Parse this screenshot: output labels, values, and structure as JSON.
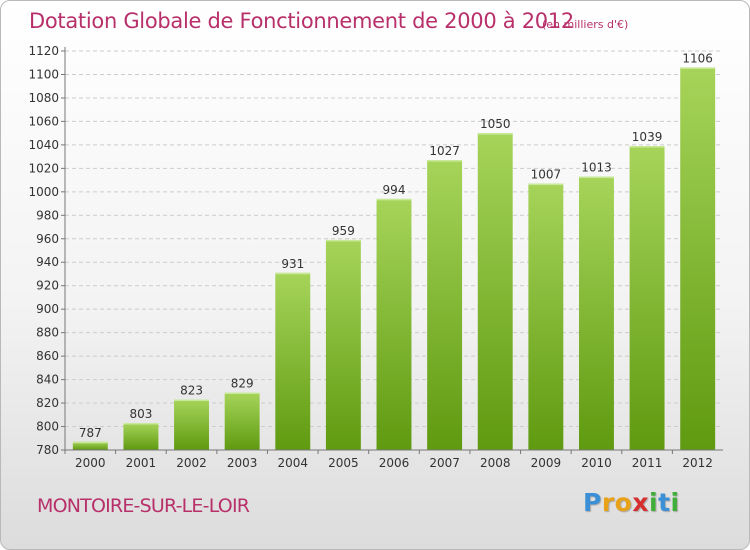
{
  "header": {
    "title": "Dotation Globale de Fonctionnement de 2000 à 2012",
    "subtitle": "(en milliers d'€)"
  },
  "footer": {
    "commune": "MONTOIRE-SUR-LE-LOIR",
    "logo_letters": [
      "P",
      "r",
      "o",
      "x",
      "i",
      "t",
      "i"
    ],
    "logo_colors": [
      "#3a8fd6",
      "#e8a21a",
      "#e8a21a",
      "#d62f2f",
      "#3fae3a",
      "#3a8fd6",
      "#3fae3a"
    ]
  },
  "colors": {
    "bar_light": "#a6d45a",
    "bar_dark": "#5f9a10",
    "title": "#b8306a",
    "grid": "#cccccc"
  },
  "chart_data": {
    "type": "bar",
    "title": "Dotation Globale de Fonctionnement de 2000 à 2012",
    "subtitle": "(en milliers d'€)",
    "categories": [
      "2000",
      "2001",
      "2002",
      "2003",
      "2004",
      "2005",
      "2006",
      "2007",
      "2008",
      "2009",
      "2010",
      "2011",
      "2012"
    ],
    "values": [
      787,
      803,
      823,
      829,
      931,
      959,
      994,
      1027,
      1050,
      1007,
      1013,
      1039,
      1106
    ],
    "value_labels": [
      "787",
      "803",
      "823",
      "829",
      "931",
      "959",
      "994",
      "1027",
      "1050",
      "1007",
      "1013",
      "1039",
      "1106"
    ],
    "yticks": [
      "780",
      "800",
      "820",
      "840",
      "860",
      "880",
      "900",
      "920",
      "940",
      "960",
      "980",
      "1000",
      "1020",
      "1040",
      "1060",
      "1080",
      "1100",
      "1120"
    ],
    "ylim": [
      780,
      1120
    ],
    "grid": true,
    "legend": "none"
  }
}
